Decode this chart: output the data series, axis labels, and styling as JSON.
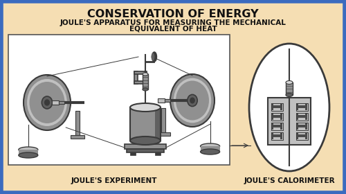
{
  "bg_color": "#F5DEB3",
  "border_color": "#3B6BBF",
  "title": "CONSERVATION OF ENERGY",
  "subtitle_line1": "JOULE'S APPARATUS FOR MEASURING THE MECHANICAL",
  "subtitle_line2": "EQUIVALENT OF HEAT",
  "label_experiment": "JOULE'S EXPERIMENT",
  "label_calorimeter": "JOULE'S CALORIMETER",
  "title_fontsize": 11.5,
  "subtitle_fontsize": 7.5,
  "label_fontsize": 7.5,
  "white": "#FFFFFF",
  "sd": "#3A3A3A",
  "sm": "#606060",
  "sl": "#909090",
  "sh": "#C0C0C0",
  "sll": "#D8D8D8",
  "bg2": "#E8E0D0"
}
